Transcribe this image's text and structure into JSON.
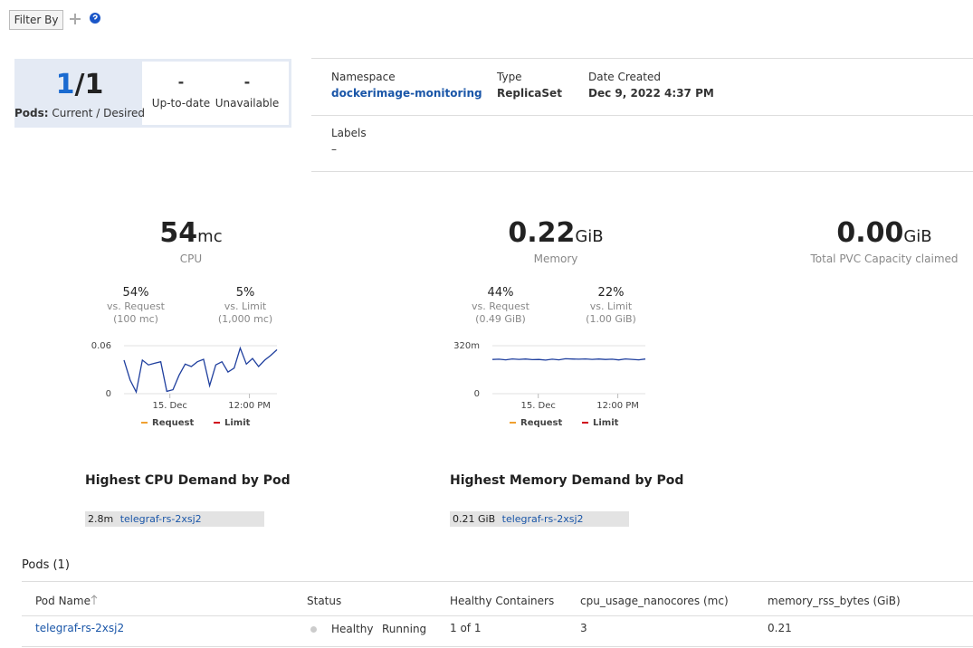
{
  "filter": {
    "label": "Filter By"
  },
  "pods_summary": {
    "current": "1",
    "separator": "/",
    "desired": "1",
    "label_bold": "Pods:",
    "label": "Current / Desired",
    "up_to_date": {
      "value": "-",
      "label": "Up-to-date"
    },
    "unavailable": {
      "value": "-",
      "label": "Unavailable"
    }
  },
  "details": {
    "namespace": {
      "label": "Namespace",
      "value": "dockerimage-monitoring"
    },
    "type": {
      "label": "Type",
      "value": "ReplicaSet"
    },
    "date_created": {
      "label": "Date Created",
      "value": "Dec 9, 2022 4:37 PM"
    },
    "labels": {
      "label": "Labels",
      "value": "–"
    }
  },
  "metrics": {
    "cpu": {
      "value": "54",
      "unit": "mc",
      "label": "CPU",
      "comparisons": [
        {
          "percent": "54%",
          "label": "vs. Request",
          "detail": "(100 mc)"
        },
        {
          "percent": "5%",
          "label": "vs. Limit",
          "detail": "(1,000 mc)"
        }
      ],
      "chart": {
        "type": "line",
        "ylim": [
          0,
          0.06
        ],
        "yticks": [
          0,
          0.06
        ],
        "x_labels": [
          "15. Dec",
          "12:00 PM"
        ],
        "color": "#1f3f9e",
        "values": [
          0.042,
          0.017,
          0.002,
          0.042,
          0.036,
          0.038,
          0.04,
          0.003,
          0.005,
          0.023,
          0.037,
          0.034,
          0.04,
          0.043,
          0.01,
          0.036,
          0.04,
          0.027,
          0.032,
          0.057,
          0.037,
          0.044,
          0.034,
          0.042,
          0.048,
          0.055
        ],
        "legend": [
          {
            "name": "Request",
            "color": "#f0a030"
          },
          {
            "name": "Limit",
            "color": "#d0021b"
          }
        ]
      }
    },
    "memory": {
      "value": "0.22",
      "unit": "GiB",
      "label": "Memory",
      "comparisons": [
        {
          "percent": "44%",
          "label": "vs. Request",
          "detail": "(0.49 GiB)"
        },
        {
          "percent": "22%",
          "label": "vs. Limit",
          "detail": "(1.00 GiB)"
        }
      ],
      "chart": {
        "type": "line",
        "ylim": [
          0,
          320
        ],
        "yticks": [
          0,
          {
            "value": 320,
            "label": "320m"
          }
        ],
        "x_labels": [
          "15. Dec",
          "12:00 PM"
        ],
        "color": "#1f3f9e",
        "values": [
          228,
          230,
          226,
          232,
          229,
          231,
          227,
          228,
          224,
          230,
          226,
          233,
          231,
          230,
          232,
          229,
          231,
          228,
          230,
          225,
          232,
          229,
          226,
          231
        ],
        "legend": [
          {
            "name": "Request",
            "color": "#f0a030"
          },
          {
            "name": "Limit",
            "color": "#d0021b"
          }
        ]
      }
    },
    "pvc": {
      "value": "0.00",
      "unit": "GiB",
      "label": "Total PVC Capacity claimed"
    }
  },
  "demand": {
    "cpu": {
      "title": "Highest CPU Demand by Pod",
      "items": [
        {
          "value": "2.8m",
          "pod": "telegraf-rs-2xsj2"
        }
      ]
    },
    "memory": {
      "title": "Highest Memory Demand by Pod",
      "items": [
        {
          "value": "0.21 GiB",
          "pod": "telegraf-rs-2xsj2"
        }
      ]
    }
  },
  "pods_table": {
    "title": "Pods (1)",
    "columns": [
      "Pod Name",
      "Status",
      "Healthy Containers",
      "cpu_usage_nanocores (mc)",
      "memory_rss_bytes (GiB)"
    ],
    "rows": [
      {
        "name": "telegraf-rs-2xsj2",
        "status": "Healthy",
        "phase": "Running",
        "healthy_containers": "1 of 1",
        "cpu": "3",
        "memory": "0.21"
      }
    ]
  }
}
